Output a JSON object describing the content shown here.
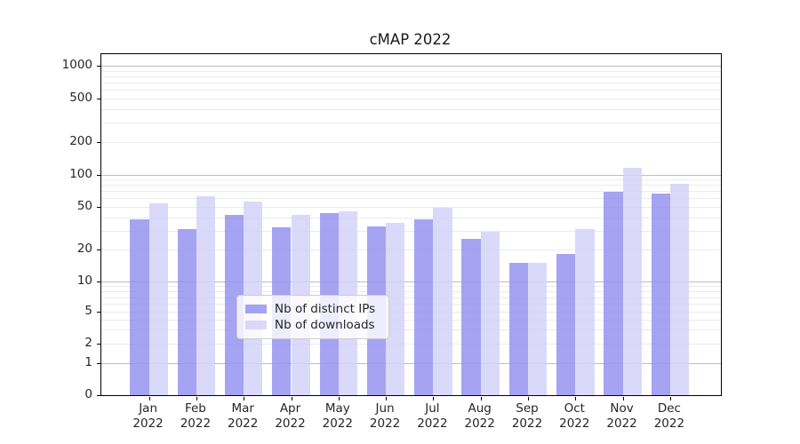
{
  "chart_data": {
    "type": "bar",
    "title": "cMAP 2022",
    "categories": [
      "Jan",
      "Feb",
      "Mar",
      "Apr",
      "May",
      "Jun",
      "Jul",
      "Aug",
      "Sep",
      "Oct",
      "Nov",
      "Dec"
    ],
    "x_year_suffix": "2022",
    "series": [
      {
        "name": "Nb of distinct IPs",
        "color": "#9793f0",
        "values": [
          38,
          31,
          42,
          32,
          44,
          33,
          38,
          25,
          15,
          18,
          69,
          66
        ]
      },
      {
        "name": "Nb of downloads",
        "color": "#d5d2f9",
        "values": [
          54,
          63,
          56,
          42,
          45,
          35,
          49,
          29,
          15,
          31,
          115,
          82
        ]
      }
    ],
    "xlabel": "",
    "ylabel": "",
    "yscale": "symlog",
    "yticks": [
      0,
      1,
      2,
      5,
      10,
      20,
      50,
      100,
      200,
      500,
      1000
    ],
    "ylim": [
      0,
      1300
    ],
    "grid": "horizontal, log minor gridlines on",
    "legend_position": "lower center"
  },
  "colors": {
    "spine": "#000000",
    "major_grid": "#bdbdbd",
    "minor_grid": "#ebebeb",
    "text": "#262626",
    "background": "#ffffff"
  }
}
